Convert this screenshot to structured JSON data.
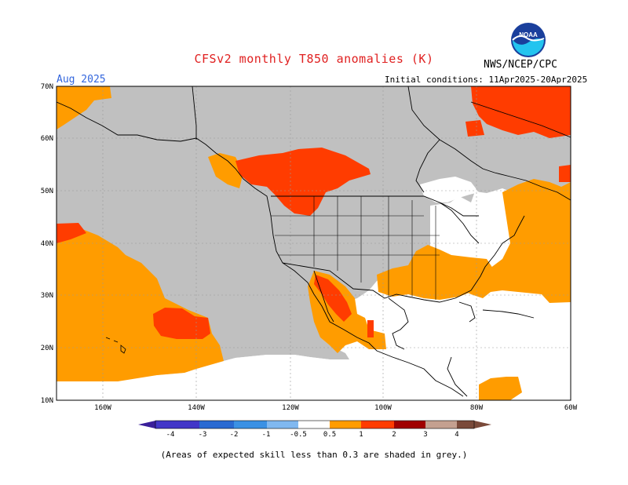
{
  "header": {
    "title": "CFSv2 monthly T850 anomalies (K)",
    "month": "Aug 2025",
    "initial_conditions": "Initial conditions: 11Apr2025-20Apr2025",
    "agency": "NWS/NCEP/CPC",
    "logo_text": "NOAA"
  },
  "map": {
    "lat_labels": [
      "70N",
      "60N",
      "50N",
      "40N",
      "30N",
      "20N",
      "10N"
    ],
    "lon_labels": [
      "160W",
      "140W",
      "120W",
      "100W",
      "80W",
      "60W"
    ],
    "lat_range": [
      10,
      70
    ],
    "lon_range": [
      -170,
      -60
    ],
    "skill_mask_color": "#c0c0c0"
  },
  "colorbar": {
    "ticks": [
      "-4",
      "-3",
      "-2",
      "-1",
      "-0.5",
      "0.5",
      "1",
      "2",
      "3",
      "4"
    ],
    "colors": {
      "lt_m4": "#3a1f9a",
      "m4_m3": "#4236c8",
      "m3_m2": "#2a6ad2",
      "m2_m1": "#3b91e4",
      "m1_m05": "#80b8f0",
      "m05_05": "#ffffff",
      "p05_1": "#ff9c00",
      "p1_2": "#ff3c00",
      "p2_3": "#a00000",
      "p3_4": "#c4a090",
      "gt_4": "#7a4a3a"
    }
  },
  "footnote": "(Areas of expected skill less than 0.3 are shaded in grey.)"
}
